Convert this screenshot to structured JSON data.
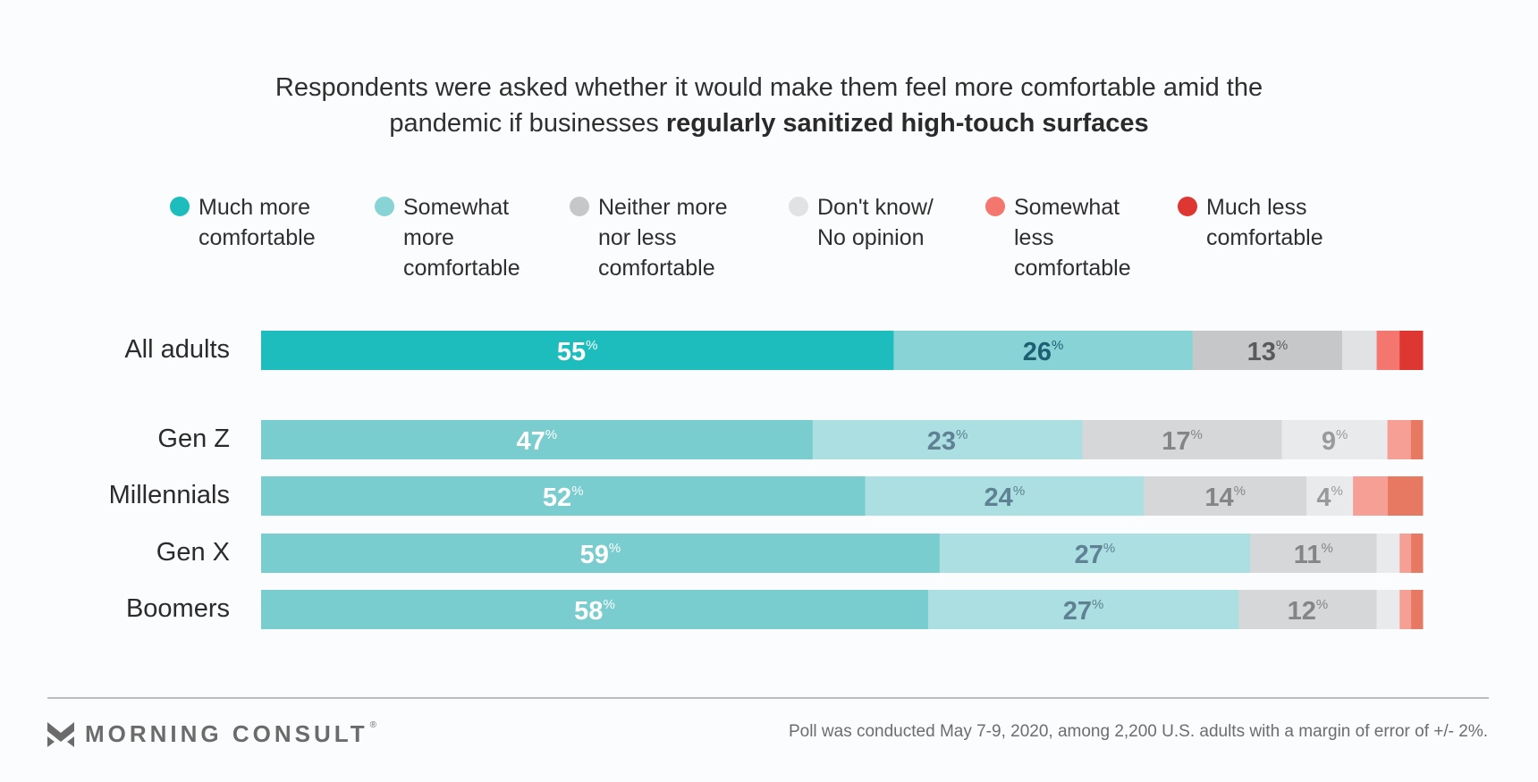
{
  "title": {
    "line1": "Respondents were asked whether it would make them feel more comfortable amid the",
    "line2_plain": "pandemic if businesses ",
    "line2_bold": "regularly sanitized high-touch surfaces"
  },
  "legend": [
    {
      "lines": [
        "Much more",
        "comfortable"
      ],
      "color": "#1dbdbe"
    },
    {
      "lines": [
        "Somewhat",
        "more",
        "comfortable"
      ],
      "color": "#88d3d6"
    },
    {
      "lines": [
        "Neither more",
        "nor less",
        "comfortable"
      ],
      "color": "#c6c7c9"
    },
    {
      "lines": [
        "Don't know/",
        "No opinion"
      ],
      "color": "#e1e2e4"
    },
    {
      "lines": [
        "Somewhat",
        "less",
        "comfortable"
      ],
      "color": "#f4776f"
    },
    {
      "lines": [
        "Much less",
        "comfortable"
      ],
      "color": "#de3731"
    }
  ],
  "chart_data": {
    "type": "bar",
    "orientation": "horizontal-stacked-100",
    "title": "Respondents were asked whether it would make them feel more comfortable amid the pandemic if businesses regularly sanitized high-touch surfaces",
    "categories": [
      "All adults",
      "Gen Z",
      "Millennials",
      "Gen X",
      "Boomers"
    ],
    "series": [
      {
        "name": "Much more comfortable",
        "values": [
          55,
          47,
          52,
          59,
          58
        ]
      },
      {
        "name": "Somewhat more comfortable",
        "values": [
          26,
          23,
          24,
          27,
          27
        ]
      },
      {
        "name": "Neither more nor less comfortable",
        "values": [
          13,
          17,
          14,
          11,
          12
        ]
      },
      {
        "name": "Don't know/ No opinion",
        "values": [
          3,
          9,
          4,
          2,
          2
        ]
      },
      {
        "name": "Somewhat less comfortable",
        "values": [
          2,
          2,
          3,
          1,
          1
        ]
      },
      {
        "name": "Much less comfortable",
        "values": [
          2,
          1,
          3,
          1,
          1
        ]
      }
    ],
    "labeled": [
      [
        true,
        true,
        true,
        false,
        false,
        false
      ],
      [
        true,
        true,
        true,
        true,
        false,
        false
      ],
      [
        true,
        true,
        true,
        true,
        false,
        false
      ],
      [
        true,
        true,
        true,
        false,
        false,
        false
      ],
      [
        true,
        true,
        true,
        false,
        false,
        false
      ]
    ],
    "percent_symbol": "%",
    "xlim": [
      0,
      100
    ],
    "legend_position": "top",
    "colors_highlight": [
      "#1dbdbe",
      "#88d3d6",
      "#c6c7c9",
      "#e1e2e4",
      "#f4776f",
      "#de3731"
    ],
    "colors_muted": [
      "#79cdcf",
      "#abdfe1",
      "#d6d7d9",
      "#e9eaec",
      "#f69f94",
      "#e77862"
    ],
    "label_colors_highlight": [
      "#ffffff",
      "#1f5f73",
      "#5a5a5a"
    ],
    "label_colors_muted": [
      "#ffffff",
      "#5e8194",
      "#858585",
      "#9a9a9a"
    ]
  },
  "footer": {
    "brand": "MORNING CONSULT",
    "registered": "®",
    "note": "Poll was conducted May 7-9, 2020, among 2,200 U.S. adults with a margin of error of +/- 2%."
  }
}
